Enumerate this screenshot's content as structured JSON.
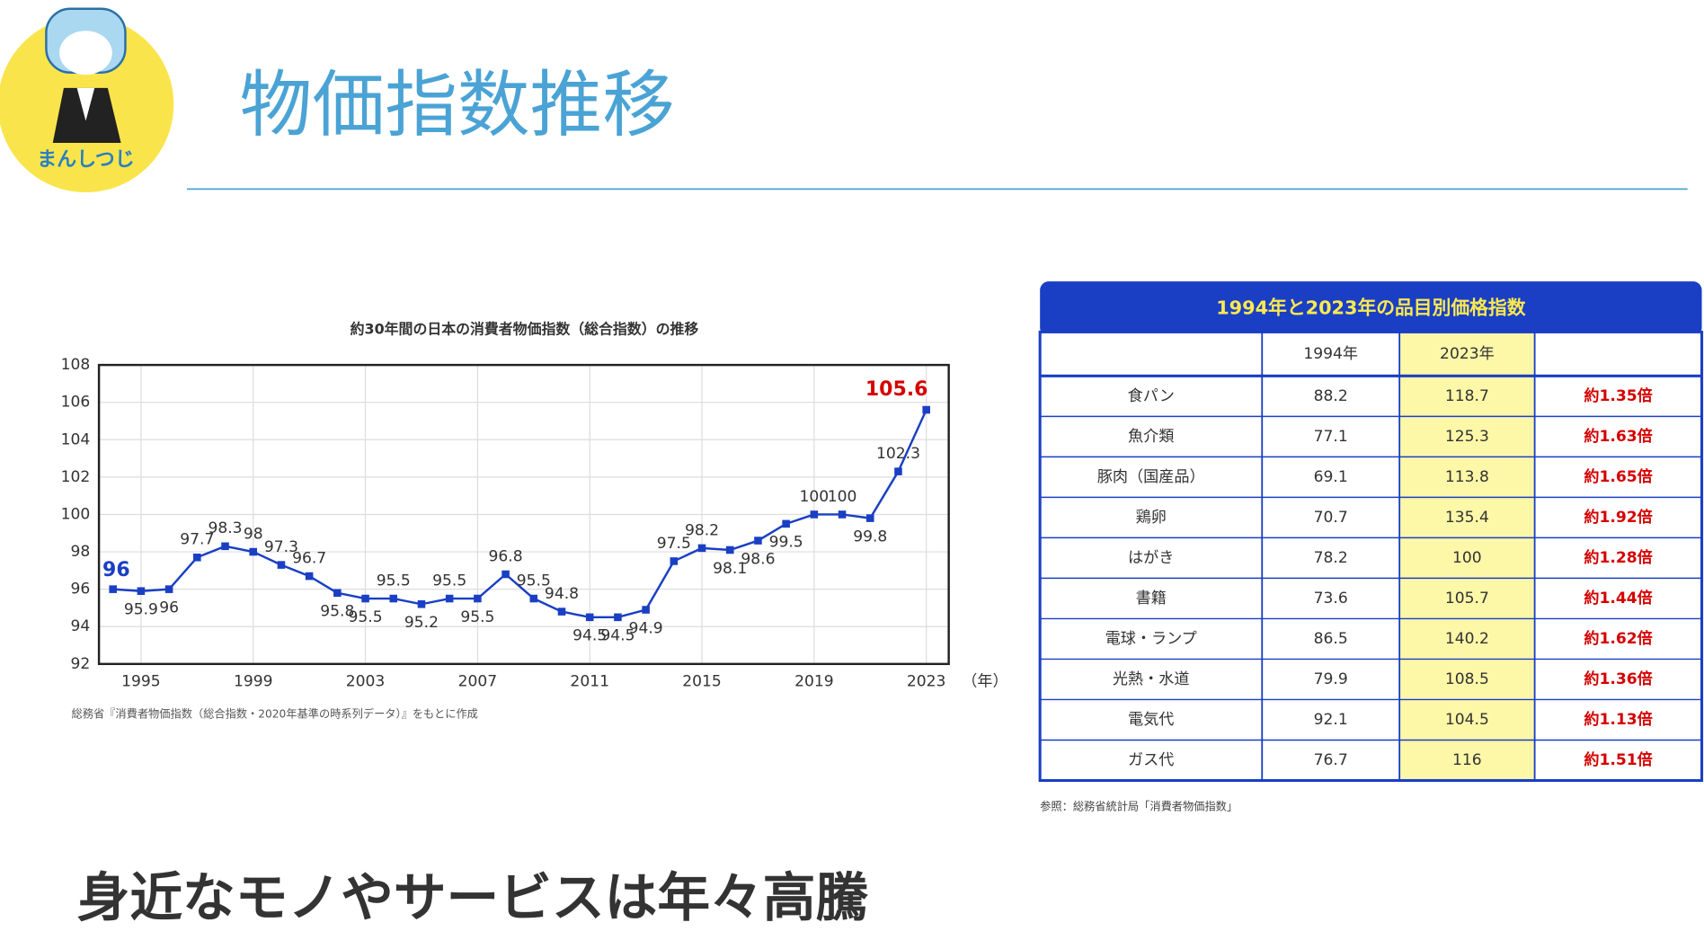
{
  "header": {
    "logo_text": "まんしつじ",
    "title": "物価指数推移"
  },
  "chart_data": {
    "type": "line",
    "title": "約30年間の日本の消費者物価指数（総合指数）の推移",
    "x_label": "（年）",
    "x": [
      1994,
      1995,
      1996,
      1997,
      1998,
      1999,
      2000,
      2001,
      2002,
      2003,
      2004,
      2005,
      2006,
      2007,
      2008,
      2009,
      2010,
      2011,
      2012,
      2013,
      2014,
      2015,
      2016,
      2017,
      2018,
      2019,
      2020,
      2021,
      2022,
      2023
    ],
    "values": [
      96,
      95.9,
      96,
      97.7,
      98.3,
      98,
      97.3,
      96.7,
      95.8,
      95.5,
      95.5,
      95.2,
      95.5,
      95.5,
      96.8,
      95.5,
      94.8,
      94.5,
      94.5,
      94.9,
      97.5,
      98.2,
      98.1,
      98.6,
      99.5,
      100,
      100,
      99.8,
      102.3,
      105.6
    ],
    "color": "#1a3fc4",
    "xlim": [
      1993.5,
      2023.8
    ],
    "xticks": [
      1995,
      1999,
      2003,
      2007,
      2011,
      2015,
      2019,
      2023
    ],
    "ylim": [
      92,
      108
    ],
    "yticks": [
      92,
      94,
      96,
      98,
      100,
      102,
      104,
      106,
      108
    ],
    "grid": true,
    "source": "総務省『消費者物価指数（総合指数・2020年基準の時系列データ）』をもとに作成"
  },
  "table": {
    "title": "1994年と2023年の品目別価格指数",
    "columns": [
      "1994年",
      "2023年"
    ],
    "rows": [
      [
        "食パン",
        88.2,
        118.7,
        "約1.35倍"
      ],
      [
        "魚介類",
        77.1,
        125.3,
        "約1.63倍"
      ],
      [
        "豚肉（国産品）",
        69.1,
        113.8,
        "約1.65倍"
      ],
      [
        "鶏卵",
        70.7,
        135.4,
        "約1.92倍"
      ],
      [
        "はがき",
        78.2,
        100,
        "約1.28倍"
      ],
      [
        "書籍",
        73.6,
        105.7,
        "約1.44倍"
      ],
      [
        "電球・ランプ",
        86.5,
        140.2,
        "約1.62倍"
      ],
      [
        "光熱・水道",
        79.9,
        108.5,
        "約1.36倍"
      ],
      [
        "電気代",
        92.1,
        104.5,
        "約1.13倍"
      ],
      [
        "ガス代",
        76.7,
        116,
        "約1.51倍"
      ]
    ],
    "note": "参照：総務省統計局「消費者物価指数」"
  },
  "footer": {
    "headline": "身近なモノやサービスは年々高騰"
  }
}
